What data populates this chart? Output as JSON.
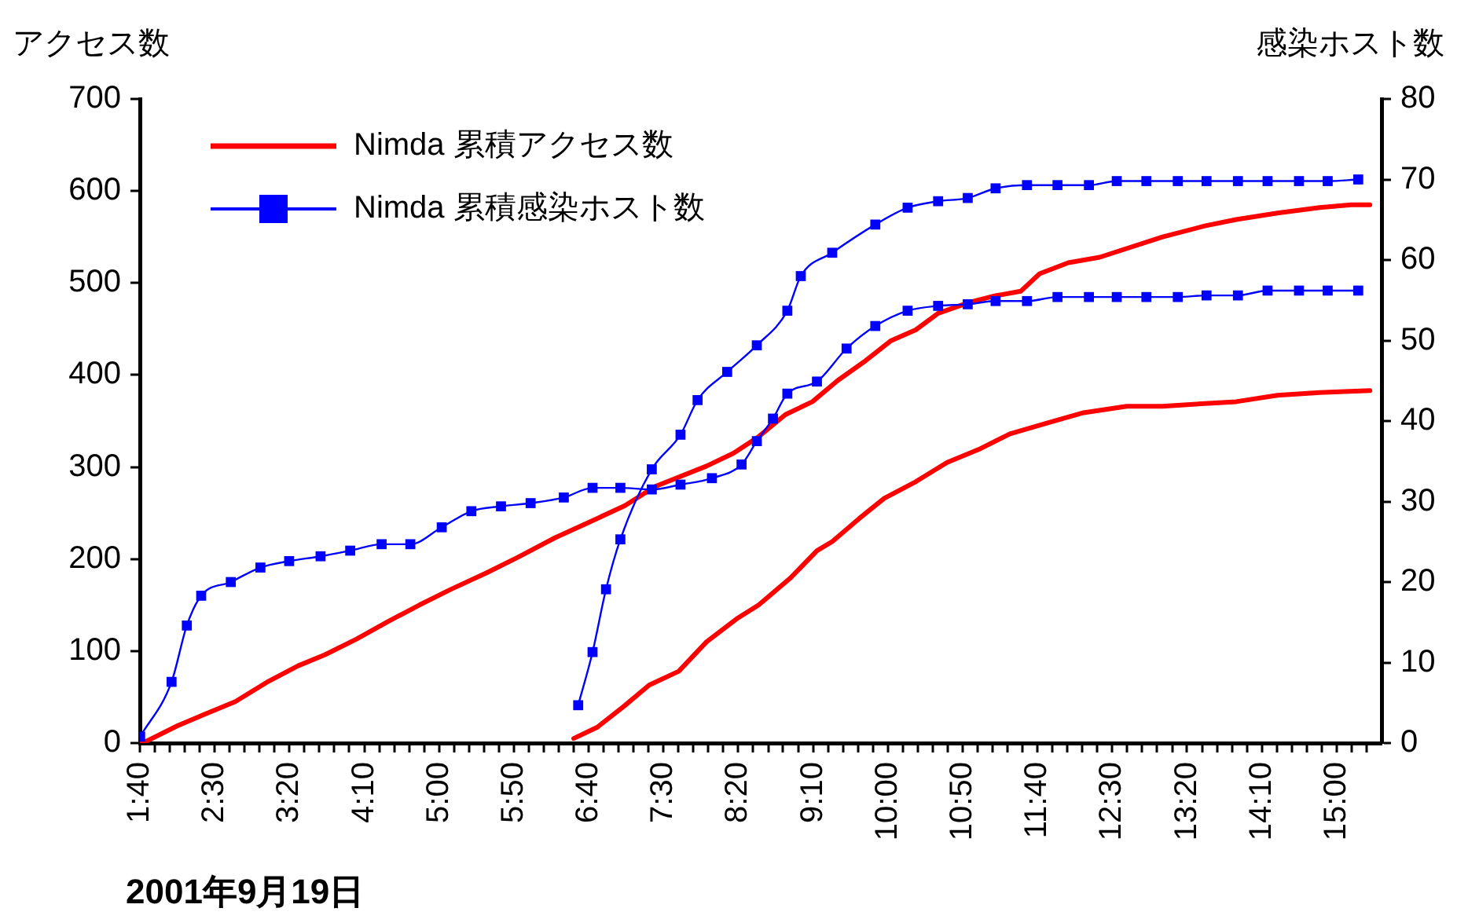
{
  "chart_data": {
    "type": "line",
    "xlabel": "2001年9月19日",
    "ylabel": "アクセス数",
    "y2label": "感染ホスト数",
    "xlim": [
      1.667,
      15.5
    ],
    "ylim": [
      0,
      700
    ],
    "y2lim": [
      0,
      80
    ],
    "yticks": [
      0,
      100,
      200,
      300,
      400,
      500,
      600,
      700
    ],
    "y2ticks": [
      0,
      10,
      20,
      30,
      40,
      50,
      60,
      70,
      80
    ],
    "xticks": [
      {
        "value": 1.667,
        "label": "1:40"
      },
      {
        "value": 1.833,
        "label": null
      },
      {
        "value": 2,
        "label": null
      },
      {
        "value": 2.167,
        "label": null
      },
      {
        "value": 2.333,
        "label": null
      },
      {
        "value": 2.5,
        "label": "2:30"
      },
      {
        "value": 2.667,
        "label": null
      },
      {
        "value": 2.833,
        "label": null
      },
      {
        "value": 3,
        "label": null
      },
      {
        "value": 3.167,
        "label": null
      },
      {
        "value": 3.333,
        "label": "3:20"
      },
      {
        "value": 3.5,
        "label": null
      },
      {
        "value": 3.667,
        "label": null
      },
      {
        "value": 3.833,
        "label": null
      },
      {
        "value": 4,
        "label": null
      },
      {
        "value": 4.167,
        "label": "4:10"
      },
      {
        "value": 4.333,
        "label": null
      },
      {
        "value": 4.5,
        "label": null
      },
      {
        "value": 4.667,
        "label": null
      },
      {
        "value": 4.833,
        "label": null
      },
      {
        "value": 5,
        "label": "5:00"
      },
      {
        "value": 5.167,
        "label": null
      },
      {
        "value": 5.333,
        "label": null
      },
      {
        "value": 5.5,
        "label": null
      },
      {
        "value": 5.667,
        "label": null
      },
      {
        "value": 5.833,
        "label": "5:50"
      },
      {
        "value": 6,
        "label": null
      },
      {
        "value": 6.167,
        "label": null
      },
      {
        "value": 6.333,
        "label": null
      },
      {
        "value": 6.5,
        "label": null
      },
      {
        "value": 6.667,
        "label": "6:40"
      },
      {
        "value": 6.833,
        "label": null
      },
      {
        "value": 7,
        "label": null
      },
      {
        "value": 7.167,
        "label": null
      },
      {
        "value": 7.333,
        "label": null
      },
      {
        "value": 7.5,
        "label": "7:30"
      },
      {
        "value": 7.667,
        "label": null
      },
      {
        "value": 7.833,
        "label": null
      },
      {
        "value": 8,
        "label": null
      },
      {
        "value": 8.167,
        "label": null
      },
      {
        "value": 8.333,
        "label": "8:20"
      },
      {
        "value": 8.5,
        "label": null
      },
      {
        "value": 8.667,
        "label": null
      },
      {
        "value": 8.833,
        "label": null
      },
      {
        "value": 9,
        "label": null
      },
      {
        "value": 9.167,
        "label": "9:10"
      },
      {
        "value": 9.333,
        "label": null
      },
      {
        "value": 9.5,
        "label": null
      },
      {
        "value": 9.667,
        "label": null
      },
      {
        "value": 9.833,
        "label": null
      },
      {
        "value": 10,
        "label": "10:00"
      },
      {
        "value": 10.167,
        "label": null
      },
      {
        "value": 10.333,
        "label": null
      },
      {
        "value": 10.5,
        "label": null
      },
      {
        "value": 10.667,
        "label": null
      },
      {
        "value": 10.833,
        "label": "10:50"
      },
      {
        "value": 11,
        "label": null
      },
      {
        "value": 11.167,
        "label": null
      },
      {
        "value": 11.333,
        "label": null
      },
      {
        "value": 11.5,
        "label": null
      },
      {
        "value": 11.667,
        "label": "11:40"
      },
      {
        "value": 11.833,
        "label": null
      },
      {
        "value": 12,
        "label": null
      },
      {
        "value": 12.167,
        "label": null
      },
      {
        "value": 12.333,
        "label": null
      },
      {
        "value": 12.5,
        "label": "12:30"
      },
      {
        "value": 12.667,
        "label": null
      },
      {
        "value": 12.833,
        "label": null
      },
      {
        "value": 13,
        "label": null
      },
      {
        "value": 13.167,
        "label": null
      },
      {
        "value": 13.333,
        "label": "13:20"
      },
      {
        "value": 13.5,
        "label": null
      },
      {
        "value": 13.667,
        "label": null
      },
      {
        "value": 13.833,
        "label": null
      },
      {
        "value": 14,
        "label": null
      },
      {
        "value": 14.167,
        "label": "14:10"
      },
      {
        "value": 14.333,
        "label": null
      },
      {
        "value": 14.5,
        "label": null
      },
      {
        "value": 14.667,
        "label": null
      },
      {
        "value": 14.833,
        "label": null
      },
      {
        "value": 15,
        "label": "15:00"
      },
      {
        "value": 15.167,
        "label": null
      },
      {
        "value": 15.333,
        "label": null
      }
    ],
    "grid": false,
    "legend": "top left",
    "tick_labels": [
      "x",
      "y",
      "y2"
    ],
    "series": [
      {
        "name": "Nimda 累積アクセス数",
        "color": "#ff0000",
        "marker": "none",
        "x": [
          1.67,
          1.74,
          2.09,
          2.38,
          2.73,
          3.08,
          3.43,
          3.73,
          4.08,
          4.43,
          4.78,
          5.13,
          5.53,
          5.88,
          6.29,
          6.76,
          7.07,
          7.41,
          7.98,
          8.28,
          8.56,
          8.86,
          9.16,
          9.44,
          9.73,
          10.03,
          10.31,
          10.56,
          10.91,
          11.19,
          11.48,
          11.69,
          12.01,
          12.36,
          13.06,
          13.53,
          13.88,
          14.34,
          14.81,
          15.16,
          15.37
        ],
        "values": [
          0,
          2,
          19,
          31,
          45,
          66,
          84,
          96,
          113,
          132,
          150,
          167,
          185,
          202,
          223,
          244,
          258,
          279,
          301,
          315,
          333,
          357,
          371,
          394,
          414,
          437,
          449,
          467,
          479,
          486,
          491,
          510,
          522,
          528,
          550,
          562,
          569,
          576,
          582,
          585,
          585
        ]
      },
      {
        "color": "#ff0000",
        "marker": "none",
        "x": [
          6.5,
          6.76,
          7.06,
          7.34,
          7.67,
          7.98,
          8.33,
          8.56,
          8.91,
          9.21,
          9.38,
          9.68,
          9.96,
          10.31,
          10.66,
          11.01,
          11.36,
          11.78,
          12.18,
          12.66,
          13.06,
          13.53,
          13.88,
          14.34,
          14.81,
          15.37
        ],
        "values": [
          5,
          17,
          40,
          63,
          78,
          110,
          136,
          150,
          179,
          209,
          219,
          244,
          266,
          284,
          305,
          319,
          336,
          348,
          359,
          366,
          366,
          369,
          371,
          378,
          381,
          383
        ]
      },
      {
        "name": "Nimda 累積感染ホスト数",
        "color": "#0000ff",
        "marker": "square",
        "axis": "y2",
        "x": [
          1.67,
          2.02,
          2.19,
          2.35,
          2.68,
          3.01,
          3.33,
          3.68,
          4.01,
          4.36,
          4.68,
          5.03,
          5.36,
          5.69,
          6.02,
          6.39,
          6.71,
          7.02,
          7.37,
          7.69,
          8.04,
          8.37,
          8.54,
          8.72,
          8.88,
          9.21,
          9.54,
          9.86,
          10.22,
          10.56,
          10.89,
          11.2,
          11.55,
          11.89,
          12.24,
          12.55,
          12.88,
          13.23,
          13.55,
          13.9,
          14.23,
          14.58,
          14.9,
          15.24
        ],
        "values": [
          0.8,
          7.6,
          14.6,
          18.3,
          20,
          21.8,
          22.6,
          23.2,
          23.9,
          24.7,
          24.7,
          26.8,
          28.8,
          29.4,
          29.8,
          30.5,
          31.7,
          31.7,
          31.5,
          32.1,
          32.9,
          34.6,
          37.5,
          40.3,
          43.4,
          44.9,
          49,
          51.8,
          53.7,
          54.3,
          54.5,
          54.9,
          54.9,
          55.4,
          55.4,
          55.4,
          55.4,
          55.4,
          55.6,
          55.6,
          56.2,
          56.2,
          56.2,
          56.2
        ]
      },
      {
        "color": "#0000ff",
        "marker": "square",
        "axis": "y2",
        "x": [
          6.55,
          6.71,
          6.86,
          7.02,
          7.37,
          7.69,
          7.88,
          8.21,
          8.54,
          8.88,
          9.03,
          9.38,
          9.86,
          10.22,
          10.56,
          10.89,
          11.2,
          11.55,
          11.89,
          12.24,
          12.55,
          12.88,
          13.23,
          13.55,
          13.9,
          14.23,
          14.58,
          14.9,
          15.24
        ],
        "values": [
          4.7,
          11.3,
          19.1,
          25.3,
          34,
          38.3,
          42.6,
          46.1,
          49.4,
          53.7,
          58,
          60.9,
          64.4,
          66.5,
          67.3,
          67.7,
          68.9,
          69.3,
          69.3,
          69.3,
          69.8,
          69.8,
          69.8,
          69.8,
          69.8,
          69.8,
          69.8,
          69.8,
          70
        ]
      }
    ]
  }
}
